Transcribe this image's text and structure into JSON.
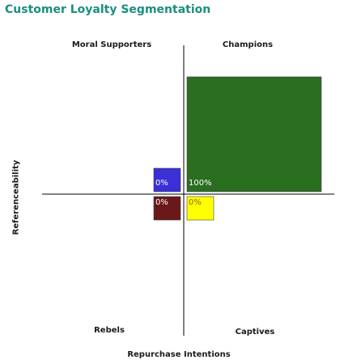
{
  "chart_data": {
    "type": "quadrant",
    "title": "Customer Loyalty Segmentation",
    "xlabel": "Repurchase Intentions",
    "ylabel": "Referenceability",
    "quadrants": [
      {
        "name": "Moral Supporters",
        "position": "top-left",
        "value": 0,
        "label": "0%",
        "color": "#3b2fd6"
      },
      {
        "name": "Champions",
        "position": "top-right",
        "value": 100,
        "label": "100%",
        "color": "#2a6e1f"
      },
      {
        "name": "Rebels",
        "position": "bottom-left",
        "value": 0,
        "label": "0%",
        "color": "#6b1818"
      },
      {
        "name": "Captives",
        "position": "bottom-right",
        "value": 0,
        "label": "0%",
        "color": "#ffff00"
      }
    ]
  }
}
